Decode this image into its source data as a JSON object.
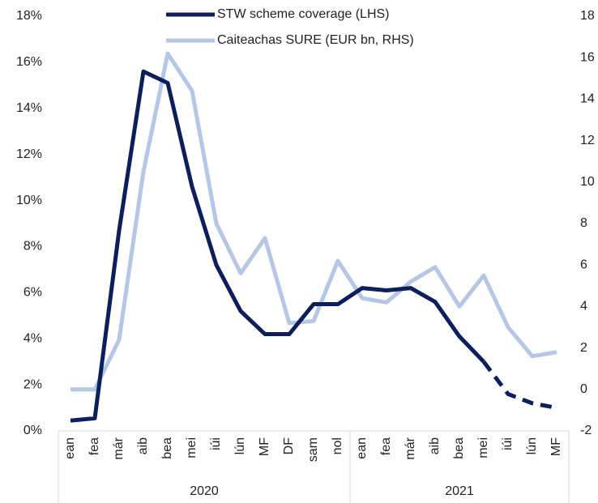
{
  "chart_data": {
    "type": "line",
    "categories": [
      "ean",
      "fea",
      "már",
      "aib",
      "bea",
      "mei",
      "iúi",
      "lún",
      "MF",
      "DF",
      "sam",
      "nol",
      "ean",
      "fea",
      "már",
      "aib",
      "bea",
      "mei",
      "iúi",
      "lún",
      "MF"
    ],
    "x_groups": [
      {
        "label": "2020",
        "count": 12
      },
      {
        "label": "2021",
        "count": 9
      }
    ],
    "series": [
      {
        "name": "STW scheme coverage (LHS)",
        "color": "#0a1f5c",
        "axis": "y",
        "dash_from_index": 17,
        "values": [
          0.45,
          0.55,
          8.7,
          15.6,
          15.1,
          10.6,
          7.2,
          5.2,
          4.2,
          4.2,
          5.5,
          5.5,
          6.2,
          6.1,
          6.2,
          5.6,
          4.1,
          3.0,
          1.6,
          1.2,
          1.0
        ]
      },
      {
        "name": "Caiteachas SURE (EUR bn, RHS)",
        "color": "#b4c7e7",
        "axis": "y2",
        "values": [
          0,
          0,
          2.4,
          10.5,
          16.2,
          14.4,
          8.0,
          5.6,
          7.3,
          3.2,
          3.3,
          6.2,
          4.4,
          4.2,
          5.2,
          5.9,
          4.0,
          5.5,
          3.0,
          1.6,
          1.8
        ]
      }
    ],
    "ylim": [
      0,
      18
    ],
    "yticks": [
      {
        "value": 0,
        "label": "0%"
      },
      {
        "value": 2,
        "label": "2%"
      },
      {
        "value": 4,
        "label": "4%"
      },
      {
        "value": 6,
        "label": "6%"
      },
      {
        "value": 8,
        "label": "8%"
      },
      {
        "value": 10,
        "label": "10%"
      },
      {
        "value": 12,
        "label": "12%"
      },
      {
        "value": 14,
        "label": "14%"
      },
      {
        "value": 16,
        "label": "16%"
      },
      {
        "value": 18,
        "label": "18%"
      }
    ],
    "y2lim": [
      -2,
      18
    ],
    "y2ticks": [
      -2,
      0,
      2,
      4,
      6,
      8,
      10,
      12,
      14,
      16,
      18
    ],
    "grid": false
  }
}
